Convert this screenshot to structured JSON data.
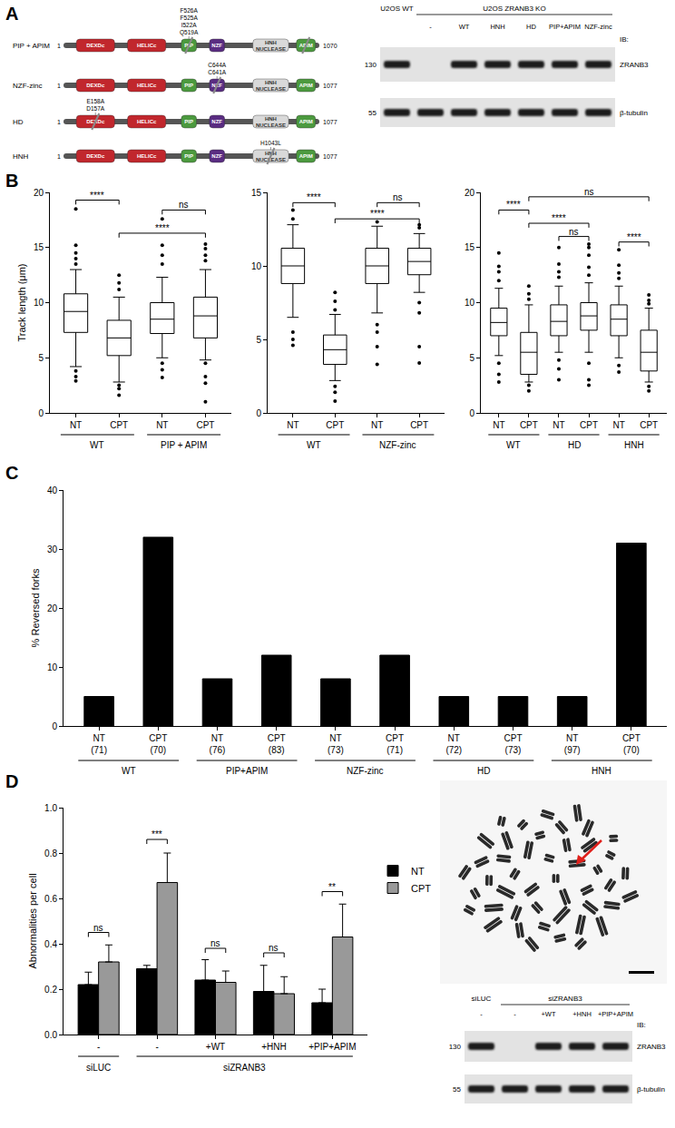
{
  "panel_labels": [
    "A",
    "B",
    "C",
    "D"
  ],
  "diagram": {
    "domains": [
      "DEXDc",
      "HELICc",
      "PIP",
      "NZF",
      "HNH NUCLEASE",
      "APIM"
    ],
    "constructs": [
      {
        "name": "PIP + APIM",
        "start": 1,
        "end": 1070,
        "mutations": [
          "F526A",
          "F525A",
          "I522A",
          "Q519A"
        ],
        "mutated_domains": [
          "PIP",
          "APIM"
        ]
      },
      {
        "name": "NZF-zinc",
        "start": 1,
        "end": 1077,
        "mutations": [
          "C644A",
          "C641A"
        ],
        "mutated_domains": [
          "NZF"
        ]
      },
      {
        "name": "HD",
        "start": 1,
        "end": 1077,
        "mutations": [
          "E158A",
          "D157A"
        ],
        "mutated_domains": [
          "DEXDc"
        ]
      },
      {
        "name": "HNH",
        "start": 1,
        "end": 1077,
        "mutations": [
          "H1043L"
        ],
        "mutated_domains": [
          "HNH NUCLEASE"
        ]
      }
    ]
  },
  "blots": [
    {
      "groups": [
        {
          "label": "U2OS WT",
          "lanes": [
            null
          ]
        },
        {
          "label": "U2OS ZRANB3 KO",
          "lanes": [
            "-",
            "WT",
            "HNH",
            "HD",
            "PIP+APIM",
            "NZF-zinc"
          ]
        }
      ],
      "antibody_header": "IB:",
      "rows": [
        {
          "target": "ZRANB3",
          "marker": 130,
          "bands": [
            true,
            false,
            true,
            true,
            true,
            true,
            true
          ]
        },
        {
          "target": "β-tubulin",
          "marker": 55,
          "bands": [
            true,
            true,
            true,
            true,
            true,
            true,
            true
          ]
        }
      ]
    },
    {
      "groups": [
        {
          "label": "siLUC",
          "lanes": [
            "-"
          ]
        },
        {
          "label": "siZRANB3",
          "lanes": [
            "-",
            "+WT",
            "+HNH",
            "+PIP+APIM"
          ]
        }
      ],
      "antibody_header": "IB:",
      "rows": [
        {
          "target": "ZRANB3",
          "marker": 130,
          "bands": [
            true,
            false,
            true,
            true,
            true
          ]
        },
        {
          "target": "β-tubulin",
          "marker": 55,
          "bands": [
            true,
            true,
            true,
            true,
            true
          ]
        }
      ]
    }
  ],
  "chart_data": [
    {
      "type": "box",
      "ylabel": "Track length (μm)",
      "groups": [
        {
          "label": "WT",
          "categories": [
            "NT",
            "CPT"
          ]
        },
        {
          "label": "PIP + APIM",
          "categories": [
            "NT",
            "CPT"
          ]
        }
      ],
      "q1": [
        7.3,
        5.2,
        7.2,
        6.8
      ],
      "median": [
        9.2,
        6.8,
        8.5,
        8.8
      ],
      "q3": [
        10.8,
        8.4,
        10.0,
        10.5
      ],
      "whisker_low": [
        4.2,
        2.8,
        5.0,
        4.8
      ],
      "whisker_high": [
        13.0,
        10.5,
        12.3,
        13.0
      ],
      "outliers": [
        [
          18.5,
          15.2,
          14.5,
          14.0,
          13.5,
          3.8,
          3.3,
          2.9
        ],
        [
          12.5,
          11.8,
          11.2,
          2.5,
          2.2,
          1.6
        ],
        [
          17.6,
          15.2,
          14.3,
          13.5,
          4.5,
          3.9,
          3.2
        ],
        [
          15.3,
          14.9,
          14.3,
          13.8,
          4.5,
          3.3,
          2.7,
          1.0
        ]
      ],
      "ylim": [
        0,
        20
      ],
      "yticks": [
        0,
        5,
        10,
        15,
        20
      ],
      "significance": [
        {
          "from": 0,
          "to": 1,
          "label": "****",
          "y": 19.3
        },
        {
          "from": 2,
          "to": 3,
          "label": "ns",
          "y": 18.4
        },
        {
          "from": 1,
          "to": 3,
          "label": "****",
          "y": 16.3
        }
      ]
    },
    {
      "type": "box",
      "groups": [
        {
          "label": "WT",
          "categories": [
            "NT",
            "CPT"
          ]
        },
        {
          "label": "NZF-zinc",
          "categories": [
            "NT",
            "CPT"
          ]
        }
      ],
      "q1": [
        8.8,
        3.3,
        8.8,
        9.4
      ],
      "median": [
        10.0,
        4.3,
        10.0,
        10.3
      ],
      "q3": [
        11.2,
        5.3,
        11.2,
        11.2
      ],
      "whisker_low": [
        6.5,
        2.2,
        6.8,
        8.2
      ],
      "whisker_high": [
        12.8,
        6.7,
        12.7,
        12.2
      ],
      "outliers": [
        [
          13.8,
          13.2,
          5.5,
          5.0,
          4.6
        ],
        [
          8.2,
          7.6,
          7.0,
          1.8,
          1.4,
          0.8
        ],
        [
          13.0,
          6.0,
          5.5,
          4.5,
          3.3
        ],
        [
          12.8,
          12.6,
          7.5,
          6.8,
          4.5,
          3.4
        ]
      ],
      "ylim": [
        0,
        15
      ],
      "yticks": [
        0,
        5,
        10,
        15
      ],
      "significance": [
        {
          "from": 0,
          "to": 1,
          "label": "****",
          "y": 14.3
        },
        {
          "from": 2,
          "to": 3,
          "label": "ns",
          "y": 14.3
        },
        {
          "from": 1,
          "to": 3,
          "label": "****",
          "y": 13.2
        }
      ]
    },
    {
      "type": "box",
      "groups": [
        {
          "label": "WT",
          "categories": [
            "NT",
            "CPT"
          ]
        },
        {
          "label": "HD",
          "categories": [
            "NT",
            "CPT"
          ]
        },
        {
          "label": "HNH",
          "categories": [
            "NT",
            "CPT"
          ]
        }
      ],
      "q1": [
        7.0,
        3.5,
        7.0,
        7.5,
        7.0,
        3.8
      ],
      "median": [
        8.2,
        5.5,
        8.3,
        8.8,
        8.5,
        5.5
      ],
      "q3": [
        9.5,
        7.3,
        9.8,
        10.0,
        9.8,
        7.5
      ],
      "whisker_low": [
        5.2,
        2.8,
        5.5,
        5.5,
        5.0,
        2.8
      ],
      "whisker_high": [
        11.3,
        9.8,
        11.5,
        11.8,
        11.5,
        9.5
      ],
      "outliers": [
        [
          14.5,
          13.3,
          12.8,
          12.0,
          4.5,
          3.5,
          2.8
        ],
        [
          11.5,
          10.8,
          10.3,
          2.5,
          2.0
        ],
        [
          15.0,
          13.5,
          12.8,
          12.3,
          4.8,
          4.0,
          3.0
        ],
        [
          15.3,
          15.0,
          14.3,
          13.2,
          12.5,
          4.5,
          3.0,
          2.5
        ],
        [
          14.8,
          13.4,
          12.7,
          12.2,
          4.3,
          3.7
        ],
        [
          10.7,
          10.2,
          9.9,
          2.4,
          2.0
        ]
      ],
      "ylim": [
        0,
        20
      ],
      "yticks": [
        0,
        5,
        10,
        15,
        20
      ],
      "significance": [
        {
          "from": 1,
          "to": 5,
          "label": "ns",
          "y": 19.6
        },
        {
          "from": 0,
          "to": 1,
          "label": "****",
          "y": 18.4
        },
        {
          "from": 1,
          "to": 3,
          "label": "****",
          "y": 17.2
        },
        {
          "from": 2,
          "to": 3,
          "label": "ns",
          "y": 16.0
        },
        {
          "from": 4,
          "to": 5,
          "label": "****",
          "y": 15.5
        }
      ]
    },
    {
      "type": "bar",
      "ylabel": "% Reversed forks",
      "groups": [
        {
          "label": "WT",
          "categories": [
            "NT",
            "CPT"
          ]
        },
        {
          "label": "PIP+APIM",
          "categories": [
            "NT",
            "CPT"
          ]
        },
        {
          "label": "NZF-zinc",
          "categories": [
            "NT",
            "CPT"
          ]
        },
        {
          "label": "HD",
          "categories": [
            "NT",
            "CPT"
          ]
        },
        {
          "label": "HNH",
          "categories": [
            "NT",
            "CPT"
          ]
        }
      ],
      "sample_sizes": [
        "(71)",
        "(70)",
        "(76)",
        "(83)",
        "(73)",
        "(71)",
        "(72)",
        "(73)",
        "(97)",
        "(70)"
      ],
      "values": [
        5,
        32,
        8,
        12,
        8,
        12,
        5,
        5,
        5,
        31
      ],
      "color": "#000000",
      "ylim": [
        0,
        40
      ],
      "yticks": [
        0,
        10,
        20,
        30,
        40
      ]
    },
    {
      "type": "bar",
      "ylabel": "Abnormalities per cell",
      "groups": [
        {
          "label": "siLUC",
          "categories": [
            "-"
          ]
        },
        {
          "label": "siZRANB3",
          "categories": [
            "-",
            "+WT",
            "+HNH",
            "+PIP+APIM"
          ]
        }
      ],
      "series": [
        {
          "name": "NT",
          "color": "#000000",
          "values": [
            0.22,
            0.29,
            0.24,
            0.19,
            0.14
          ],
          "errors": [
            0.055,
            0.015,
            0.09,
            0.115,
            0.06
          ]
        },
        {
          "name": "CPT",
          "color": "#999999",
          "values": [
            0.32,
            0.67,
            0.23,
            0.18,
            0.43
          ],
          "errors": [
            0.075,
            0.13,
            0.05,
            0.075,
            0.145
          ]
        }
      ],
      "ylim": [
        0,
        1
      ],
      "yticks": [
        {
          "value": 0,
          "label": "0.0"
        },
        0.2,
        0.4,
        0.6,
        0.8,
        {
          "value": 1,
          "label": "1.0"
        }
      ],
      "legend": "right",
      "significance": [
        {
          "category": 0,
          "label": "ns",
          "y": 0.45
        },
        {
          "category": 1,
          "label": "***",
          "y": 0.86
        },
        {
          "category": 2,
          "label": "ns",
          "y": 0.38
        },
        {
          "category": 3,
          "label": "ns",
          "y": 0.36
        },
        {
          "category": 4,
          "label": "**",
          "y": 0.63
        }
      ]
    }
  ]
}
